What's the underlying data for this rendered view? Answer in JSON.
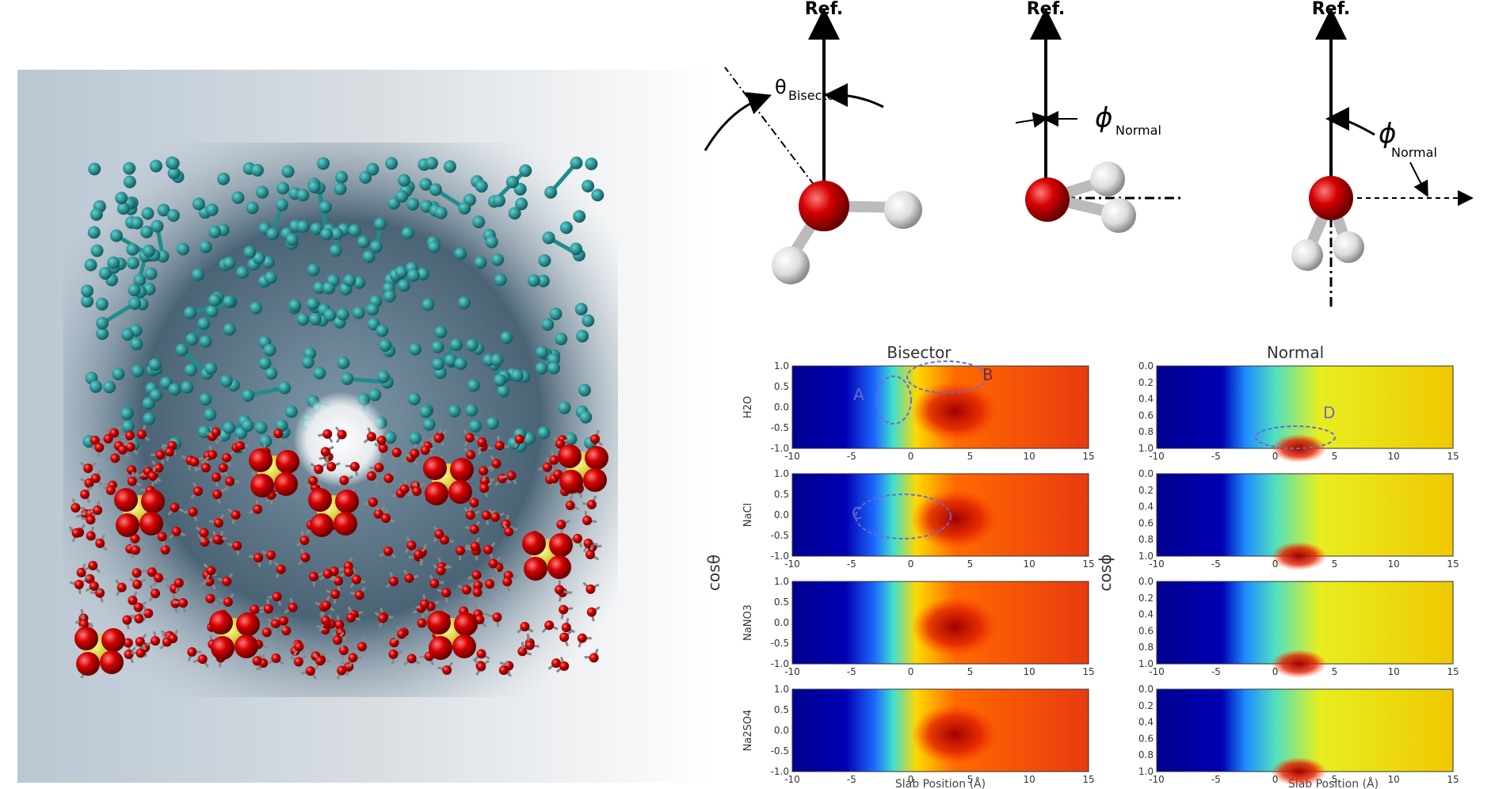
{
  "orientation_diagrams": [
    {
      "ref": "Ref.",
      "angle_symbol": "θ",
      "angle_subscript": "Bisector"
    },
    {
      "ref": "Ref.",
      "angle_symbol": "ϕ",
      "angle_subscript": "Normal"
    },
    {
      "ref": "Ref.",
      "angle_symbol": "ϕ",
      "angle_subscript": "Normal"
    }
  ],
  "colors": {
    "oxygen": "#d40000",
    "hydrogen": "#e8e8e8",
    "carbon_bond": "#1e8c8c",
    "sulfur": "#e8d800",
    "heat_low": "#00008f",
    "heat_high": "#c81400"
  },
  "plots": {
    "bisector_title": "Bisector",
    "normal_title": "Normal",
    "bisector_ylabel": "cosθ",
    "normal_ylabel": "cosϕ",
    "xlabel": "Slab Position (Å)",
    "rows": [
      "H2O",
      "NaCl",
      "NaNO3",
      "Na2SO4"
    ],
    "annotations": [
      "A",
      "B",
      "C",
      "D"
    ]
  },
  "chart_data": [
    {
      "type": "heatmap",
      "title": "Bisector",
      "xlabel": "Slab Position (Å)",
      "ylabel": "cosθ",
      "row_labels": [
        "H2O",
        "NaCl",
        "NaNO3",
        "Na2SO4"
      ],
      "x_ticks": [
        -10,
        -5,
        0,
        5,
        10,
        15
      ],
      "y_ticks": [
        1.0,
        0.5,
        0.0,
        -0.5,
        -1.0
      ],
      "xlim": [
        -10,
        15
      ],
      "ylim": [
        -1,
        1
      ]
    },
    {
      "type": "heatmap",
      "title": "Normal",
      "xlabel": "Slab Position (Å)",
      "ylabel": "cosϕ",
      "row_labels": [
        "H2O",
        "NaCl",
        "NaNO3",
        "Na2SO4"
      ],
      "x_ticks": [
        -10,
        -5,
        0,
        5,
        10,
        15
      ],
      "y_ticks": [
        0.0,
        0.2,
        0.4,
        0.6,
        0.8,
        1.0
      ],
      "xlim": [
        -10,
        15
      ],
      "ylim": [
        0,
        1
      ]
    }
  ]
}
